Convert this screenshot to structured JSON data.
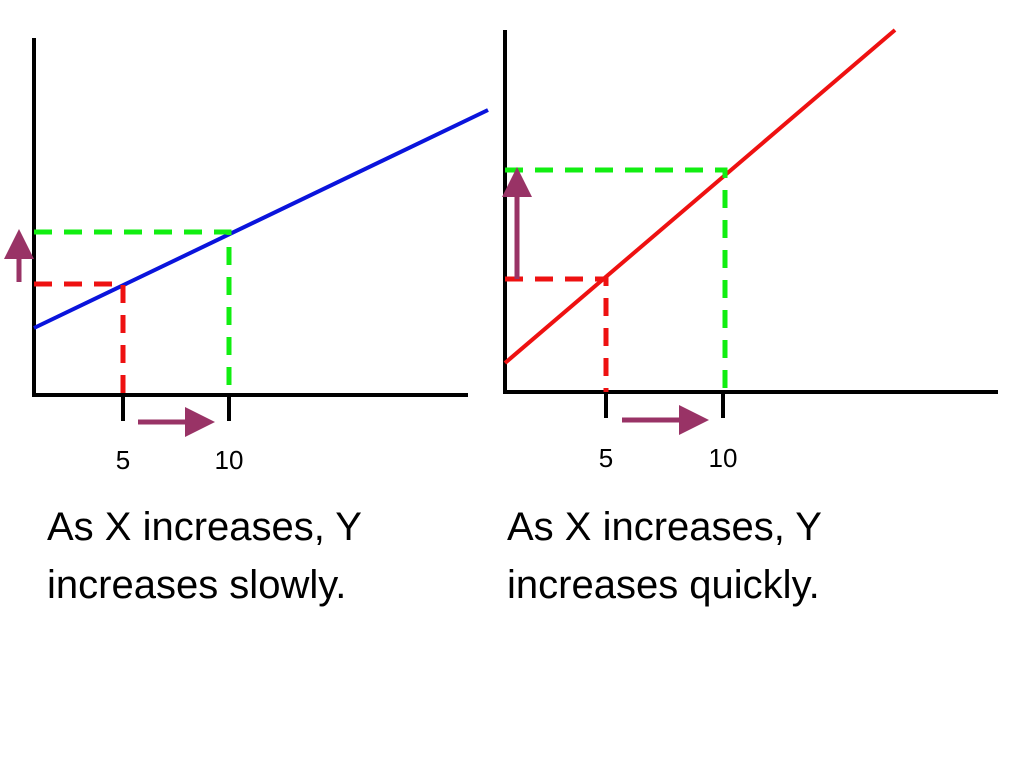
{
  "panels": [
    {
      "xticks": [
        5,
        10
      ],
      "caption": [
        "As X increases, Y",
        "increases slowly."
      ]
    },
    {
      "xticks": [
        5,
        10
      ],
      "caption": [
        "As X increases, Y",
        "increases quickly."
      ]
    }
  ]
}
